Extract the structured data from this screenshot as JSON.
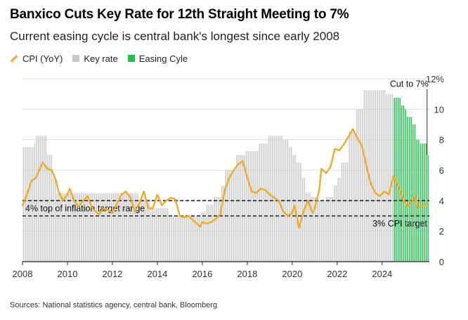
{
  "title": "Banxico Cuts Key Rate for 12th Straight Meeting to 7%",
  "subtitle": "Current easing cycle is central bank's longest since early 2008",
  "legend": {
    "cpi": "CPI (YoY)",
    "key_rate": "Key rate",
    "easing": "Easing Cyle"
  },
  "source": "Sources: National statistics agency, central bank, Bloomberg",
  "colors": {
    "cpi": "#f5a623",
    "key_rate": "#c8c8c8",
    "easing": "#1ec24a",
    "gridline": "#dddddd",
    "reference": "#222222"
  },
  "chart_data": {
    "type": "bar",
    "title": "Banxico Cuts Key Rate for 12th Straight Meeting to 7%",
    "xlabel": "",
    "ylabel": "",
    "xlim": [
      2008,
      2026.1
    ],
    "ylim": [
      0,
      12
    ],
    "x_ticks": [
      "2008",
      "2010",
      "2012",
      "2014",
      "2016",
      "2018",
      "2020",
      "2022",
      "2024"
    ],
    "y_ticks": [
      "0",
      "2",
      "4",
      "6",
      "8",
      "10",
      "12%"
    ],
    "grid": true,
    "legend_position": "top-left",
    "series": [
      {
        "name": "Key rate",
        "type": "bar",
        "points": [
          [
            2008.0,
            7.5
          ],
          [
            2008.5,
            7.75
          ],
          [
            2008.6,
            8.25
          ],
          [
            2009.0,
            8.25
          ],
          [
            2009.1,
            7.0
          ],
          [
            2009.3,
            5.5
          ],
          [
            2009.5,
            4.5
          ],
          [
            2011.0,
            4.5
          ],
          [
            2012.0,
            4.5
          ],
          [
            2013.2,
            4.0
          ],
          [
            2013.7,
            3.5
          ],
          [
            2014.5,
            3.0
          ],
          [
            2015.9,
            3.25
          ],
          [
            2016.2,
            3.75
          ],
          [
            2016.5,
            4.25
          ],
          [
            2016.8,
            5.0
          ],
          [
            2017.0,
            6.0
          ],
          [
            2017.5,
            7.0
          ],
          [
            2017.9,
            7.25
          ],
          [
            2018.5,
            7.75
          ],
          [
            2018.9,
            8.25
          ],
          [
            2019.6,
            8.0
          ],
          [
            2019.8,
            7.5
          ],
          [
            2020.0,
            7.0
          ],
          [
            2020.2,
            6.5
          ],
          [
            2020.4,
            5.5
          ],
          [
            2020.6,
            4.5
          ],
          [
            2020.8,
            4.25
          ],
          [
            2021.1,
            4.0
          ],
          [
            2021.5,
            4.25
          ],
          [
            2021.8,
            5.0
          ],
          [
            2022.0,
            5.5
          ],
          [
            2022.2,
            6.5
          ],
          [
            2022.5,
            8.5
          ],
          [
            2022.8,
            10.0
          ],
          [
            2023.2,
            11.25
          ],
          [
            2024.2,
            11.0
          ],
          [
            2024.5,
            10.75
          ],
          [
            2024.8,
            10.25
          ],
          [
            2025.0,
            10.0
          ],
          [
            2025.1,
            9.5
          ],
          [
            2025.3,
            9.0
          ],
          [
            2025.5,
            8.0
          ],
          [
            2025.7,
            7.75
          ],
          [
            2026.0,
            7.0
          ]
        ]
      },
      {
        "name": "CPI (YoY)",
        "type": "line",
        "points": [
          [
            2008.0,
            3.7
          ],
          [
            2008.2,
            4.4
          ],
          [
            2008.4,
            5.3
          ],
          [
            2008.6,
            5.5
          ],
          [
            2008.8,
            6.2
          ],
          [
            2008.9,
            6.5
          ],
          [
            2009.1,
            6.1
          ],
          [
            2009.3,
            6.0
          ],
          [
            2009.5,
            5.3
          ],
          [
            2009.6,
            4.6
          ],
          [
            2009.8,
            4.0
          ],
          [
            2010.0,
            4.4
          ],
          [
            2010.1,
            4.8
          ],
          [
            2010.3,
            4.0
          ],
          [
            2010.5,
            3.6
          ],
          [
            2010.7,
            4.0
          ],
          [
            2010.9,
            4.3
          ],
          [
            2011.1,
            3.5
          ],
          [
            2011.4,
            3.1
          ],
          [
            2011.6,
            3.5
          ],
          [
            2011.8,
            3.4
          ],
          [
            2012.0,
            3.2
          ],
          [
            2012.2,
            3.8
          ],
          [
            2012.4,
            4.4
          ],
          [
            2012.6,
            4.6
          ],
          [
            2012.8,
            4.2
          ],
          [
            2013.0,
            3.3
          ],
          [
            2013.2,
            3.8
          ],
          [
            2013.4,
            4.6
          ],
          [
            2013.6,
            3.5
          ],
          [
            2013.8,
            3.5
          ],
          [
            2014.0,
            4.4
          ],
          [
            2014.2,
            3.7
          ],
          [
            2014.4,
            4.0
          ],
          [
            2014.6,
            4.2
          ],
          [
            2014.8,
            4.1
          ],
          [
            2015.0,
            3.0
          ],
          [
            2015.2,
            2.9
          ],
          [
            2015.4,
            3.0
          ],
          [
            2015.6,
            2.7
          ],
          [
            2015.9,
            2.3
          ],
          [
            2016.0,
            2.6
          ],
          [
            2016.2,
            2.5
          ],
          [
            2016.4,
            2.6
          ],
          [
            2016.6,
            2.8
          ],
          [
            2016.8,
            3.1
          ],
          [
            2017.0,
            4.7
          ],
          [
            2017.2,
            5.5
          ],
          [
            2017.4,
            6.0
          ],
          [
            2017.6,
            6.4
          ],
          [
            2017.8,
            6.6
          ],
          [
            2018.0,
            5.5
          ],
          [
            2018.2,
            4.6
          ],
          [
            2018.4,
            4.5
          ],
          [
            2018.6,
            4.8
          ],
          [
            2018.8,
            4.7
          ],
          [
            2019.0,
            4.4
          ],
          [
            2019.2,
            4.2
          ],
          [
            2019.4,
            4.0
          ],
          [
            2019.6,
            3.3
          ],
          [
            2019.8,
            3.0
          ],
          [
            2020.0,
            3.2
          ],
          [
            2020.1,
            3.7
          ],
          [
            2020.3,
            2.2
          ],
          [
            2020.5,
            3.3
          ],
          [
            2020.7,
            4.0
          ],
          [
            2020.9,
            3.2
          ],
          [
            2021.0,
            3.5
          ],
          [
            2021.2,
            4.7
          ],
          [
            2021.3,
            6.1
          ],
          [
            2021.5,
            5.8
          ],
          [
            2021.7,
            6.2
          ],
          [
            2021.9,
            7.4
          ],
          [
            2022.1,
            7.3
          ],
          [
            2022.3,
            7.7
          ],
          [
            2022.5,
            8.2
          ],
          [
            2022.7,
            8.7
          ],
          [
            2022.9,
            8.1
          ],
          [
            2023.1,
            7.6
          ],
          [
            2023.3,
            6.3
          ],
          [
            2023.5,
            5.1
          ],
          [
            2023.7,
            4.5
          ],
          [
            2023.9,
            4.3
          ],
          [
            2024.1,
            4.6
          ],
          [
            2024.3,
            4.4
          ],
          [
            2024.5,
            5.6
          ],
          [
            2024.7,
            5.0
          ],
          [
            2024.9,
            4.3
          ],
          [
            2025.1,
            3.6
          ],
          [
            2025.3,
            3.9
          ],
          [
            2025.5,
            4.3
          ],
          [
            2025.6,
            3.5
          ],
          [
            2025.8,
            3.7
          ],
          [
            2026.0,
            3.8
          ]
        ]
      }
    ],
    "easing_cycle_start": 2024.5,
    "reference_lines": [
      {
        "value": 4,
        "label": "4% top of inflation target range"
      },
      {
        "value": 3,
        "label": "3% CPI target"
      }
    ],
    "annotations": [
      {
        "text": "Cut to 7%",
        "x": 2026.0,
        "y": 11.0
      }
    ]
  }
}
